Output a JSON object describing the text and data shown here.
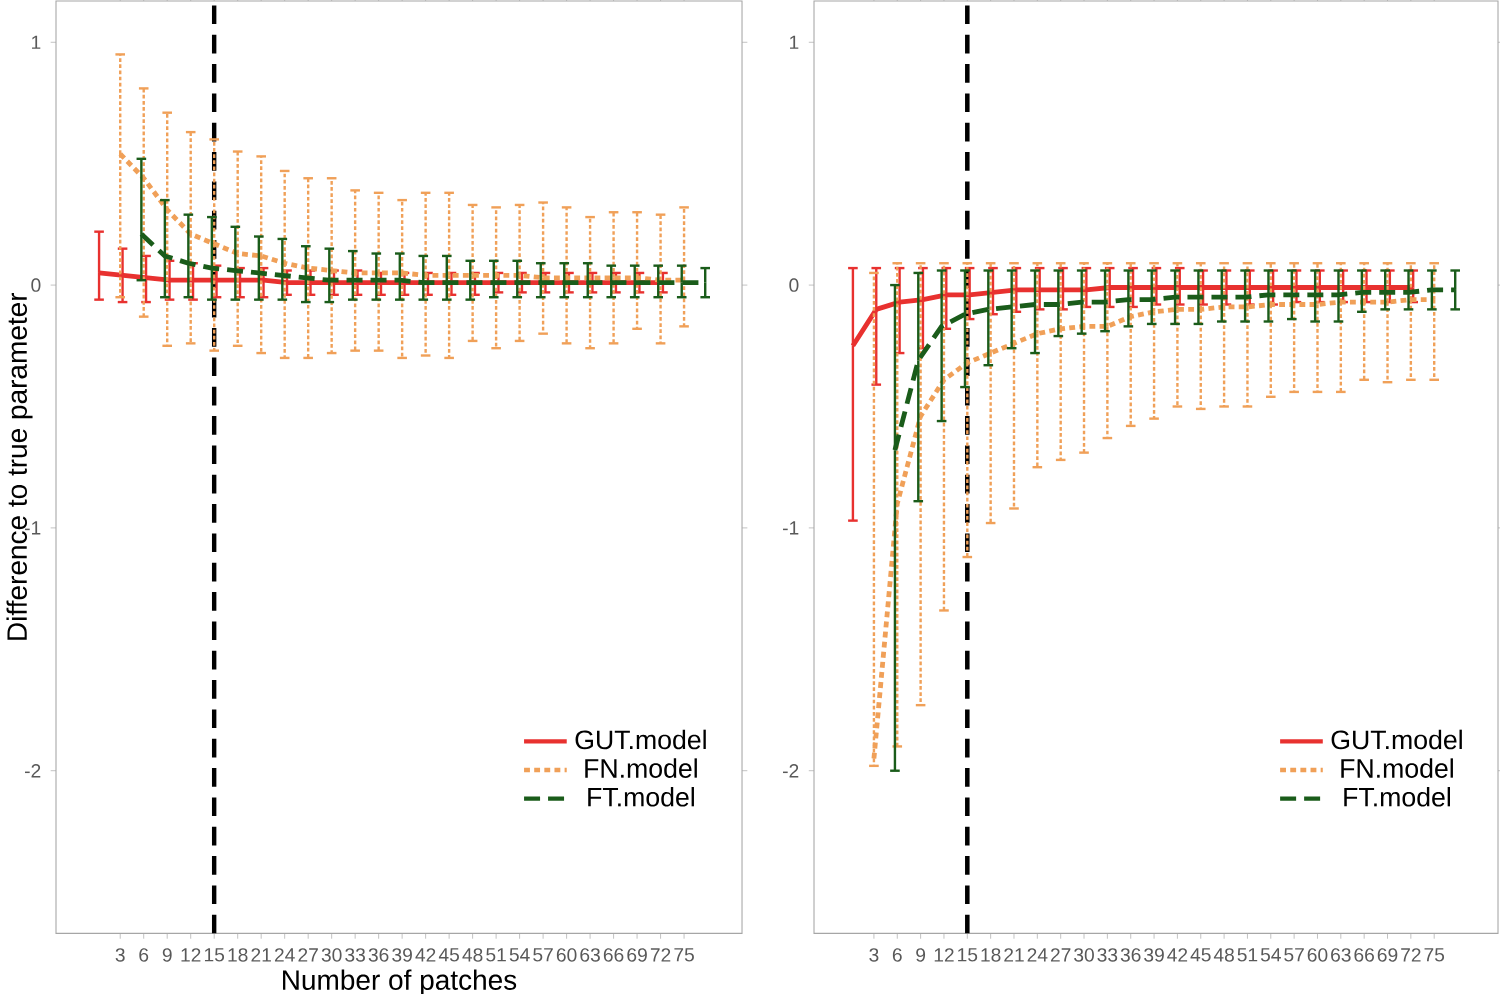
{
  "chart_data": [
    {
      "type": "line",
      "xlabel": "Number of patches",
      "ylabel": "Difference to true parameter",
      "xlim": [
        -5.2,
        82.4
      ],
      "ylim": [
        -2.67,
        1.17
      ],
      "xticks": [
        3,
        6,
        9,
        12,
        15,
        18,
        21,
        24,
        27,
        30,
        33,
        36,
        39,
        42,
        45,
        48,
        51,
        54,
        57,
        60,
        63,
        66,
        69,
        72,
        75
      ],
      "yticks": [
        -2,
        -1,
        0,
        1
      ],
      "legend": "bottom right",
      "ref_lines": [
        {
          "axis": "x",
          "value": 15,
          "color": "#000000",
          "line_style": "dashed"
        }
      ],
      "series": [
        {
          "name": "GUT.model",
          "color": "#e8312f",
          "line_style": "solid",
          "x": [
            0.3,
            3.3,
            6.3,
            9.3,
            12.3,
            15.3,
            18.3,
            21.3,
            24.3,
            27.3,
            30.3,
            33.3,
            36.3,
            39.3,
            42.3,
            45.3,
            48.3,
            51.3,
            54.3,
            57.3,
            60.3,
            63.3,
            66.3,
            69.3,
            72.3
          ],
          "values": [
            0.05,
            0.04,
            0.03,
            0.02,
            0.02,
            0.02,
            0.02,
            0.02,
            0.01,
            0.01,
            0.01,
            0.01,
            0.01,
            0.01,
            0.01,
            0.01,
            0.01,
            0.01,
            0.01,
            0.01,
            0.01,
            0.01,
            0.01,
            0.01,
            0.01
          ],
          "errors": [
            [
              -0.06,
              0.22
            ],
            [
              -0.07,
              0.15
            ],
            [
              -0.07,
              0.12
            ],
            [
              -0.06,
              0.1
            ],
            [
              -0.06,
              0.09
            ],
            [
              -0.05,
              0.08
            ],
            [
              -0.05,
              0.07
            ],
            [
              -0.05,
              0.07
            ],
            [
              -0.04,
              0.06
            ],
            [
              -0.04,
              0.06
            ],
            [
              -0.04,
              0.06
            ],
            [
              -0.04,
              0.06
            ],
            [
              -0.04,
              0.05
            ],
            [
              -0.04,
              0.05
            ],
            [
              -0.04,
              0.05
            ],
            [
              -0.04,
              0.05
            ],
            [
              -0.04,
              0.05
            ],
            [
              -0.03,
              0.05
            ],
            [
              -0.03,
              0.05
            ],
            [
              -0.03,
              0.05
            ],
            [
              -0.03,
              0.05
            ],
            [
              -0.03,
              0.05
            ],
            [
              -0.03,
              0.05
            ],
            [
              -0.03,
              0.05
            ],
            [
              -0.03,
              0.05
            ]
          ]
        },
        {
          "name": "FN.model",
          "color": "#f0a058",
          "line_style": "dotted",
          "x": [
            3,
            6,
            9,
            12,
            15,
            18,
            21,
            24,
            27,
            30,
            33,
            36,
            39,
            42,
            45,
            48,
            51,
            54,
            57,
            60,
            63,
            66,
            69,
            72,
            75
          ],
          "values": [
            0.54,
            0.44,
            0.31,
            0.21,
            0.17,
            0.13,
            0.12,
            0.09,
            0.07,
            0.06,
            0.05,
            0.05,
            0.05,
            0.04,
            0.04,
            0.04,
            0.04,
            0.04,
            0.03,
            0.03,
            0.03,
            0.03,
            0.03,
            0.02,
            0.02
          ],
          "errors": [
            [
              -0.05,
              0.95
            ],
            [
              -0.13,
              0.81
            ],
            [
              -0.25,
              0.71
            ],
            [
              -0.24,
              0.63
            ],
            [
              -0.27,
              0.6
            ],
            [
              -0.25,
              0.55
            ],
            [
              -0.28,
              0.53
            ],
            [
              -0.3,
              0.47
            ],
            [
              -0.3,
              0.44
            ],
            [
              -0.28,
              0.44
            ],
            [
              -0.27,
              0.39
            ],
            [
              -0.27,
              0.38
            ],
            [
              -0.3,
              0.35
            ],
            [
              -0.29,
              0.38
            ],
            [
              -0.3,
              0.38
            ],
            [
              -0.23,
              0.33
            ],
            [
              -0.26,
              0.32
            ],
            [
              -0.23,
              0.33
            ],
            [
              -0.2,
              0.34
            ],
            [
              -0.24,
              0.32
            ],
            [
              -0.26,
              0.28
            ],
            [
              -0.24,
              0.3
            ],
            [
              -0.18,
              0.3
            ],
            [
              -0.24,
              0.29
            ],
            [
              -0.17,
              0.32
            ]
          ]
        },
        {
          "name": "FT.model",
          "color": "#1a5c1a",
          "line_style": "dashed",
          "x": [
            5.7,
            8.7,
            11.7,
            14.7,
            17.7,
            20.7,
            23.7,
            26.7,
            29.7,
            32.7,
            35.7,
            38.7,
            41.7,
            44.7,
            47.7,
            50.7,
            53.7,
            56.7,
            59.7,
            62.7,
            65.7,
            68.7,
            71.7,
            74.7,
            77.7
          ],
          "values": [
            0.21,
            0.12,
            0.09,
            0.07,
            0.06,
            0.05,
            0.04,
            0.03,
            0.02,
            0.02,
            0.02,
            0.02,
            0.01,
            0.01,
            0.01,
            0.01,
            0.01,
            0.01,
            0.01,
            0.01,
            0.01,
            0.01,
            0.01,
            0.01,
            0.01
          ],
          "errors": [
            [
              0.02,
              0.52
            ],
            [
              -0.05,
              0.35
            ],
            [
              -0.05,
              0.29
            ],
            [
              -0.06,
              0.28
            ],
            [
              -0.06,
              0.24
            ],
            [
              -0.06,
              0.2
            ],
            [
              -0.06,
              0.19
            ],
            [
              -0.07,
              0.16
            ],
            [
              -0.07,
              0.15
            ],
            [
              -0.06,
              0.14
            ],
            [
              -0.06,
              0.13
            ],
            [
              -0.06,
              0.13
            ],
            [
              -0.06,
              0.12
            ],
            [
              -0.06,
              0.12
            ],
            [
              -0.06,
              0.1
            ],
            [
              -0.05,
              0.1
            ],
            [
              -0.05,
              0.1
            ],
            [
              -0.05,
              0.09
            ],
            [
              -0.05,
              0.09
            ],
            [
              -0.05,
              0.09
            ],
            [
              -0.05,
              0.08
            ],
            [
              -0.05,
              0.08
            ],
            [
              -0.05,
              0.08
            ],
            [
              -0.05,
              0.08
            ],
            [
              -0.05,
              0.07
            ]
          ]
        }
      ]
    },
    {
      "type": "line",
      "xlim": [
        -4.7,
        83.2
      ],
      "ylim": [
        -2.67,
        1.17
      ],
      "xticks": [
        3,
        6,
        9,
        12,
        15,
        18,
        21,
        24,
        27,
        30,
        33,
        36,
        39,
        42,
        45,
        48,
        51,
        54,
        57,
        60,
        63,
        66,
        69,
        72,
        75
      ],
      "yticks": [
        -2,
        -1,
        0,
        1
      ],
      "legend": "bottom right",
      "ref_lines": [
        {
          "axis": "x",
          "value": 15,
          "color": "#000000",
          "line_style": "dashed"
        }
      ],
      "series": [
        {
          "name": "GUT.model",
          "color": "#e8312f",
          "line_style": "solid",
          "x": [
            0.3,
            3.3,
            6.3,
            9.3,
            12.3,
            15.3,
            18.3,
            21.3,
            24.3,
            27.3,
            30.3,
            33.3,
            36.3,
            39.3,
            42.3,
            45.3,
            48.3,
            51.3,
            54.3,
            57.3,
            60.3,
            63.3,
            66.3,
            69.3,
            72.3
          ],
          "values": [
            -0.25,
            -0.1,
            -0.07,
            -0.06,
            -0.04,
            -0.04,
            -0.03,
            -0.02,
            -0.02,
            -0.02,
            -0.02,
            -0.01,
            -0.01,
            -0.01,
            -0.01,
            -0.01,
            -0.01,
            -0.01,
            -0.01,
            -0.01,
            -0.01,
            -0.01,
            -0.01,
            -0.01,
            -0.01
          ],
          "errors": [
            [
              -0.97,
              0.07
            ],
            [
              -0.41,
              0.07
            ],
            [
              -0.28,
              0.07
            ],
            [
              -0.26,
              0.07
            ],
            [
              -0.18,
              0.07
            ],
            [
              -0.14,
              0.07
            ],
            [
              -0.12,
              0.07
            ],
            [
              -0.11,
              0.07
            ],
            [
              -0.1,
              0.07
            ],
            [
              -0.1,
              0.07
            ],
            [
              -0.09,
              0.07
            ],
            [
              -0.09,
              0.07
            ],
            [
              -0.09,
              0.07
            ],
            [
              -0.08,
              0.07
            ],
            [
              -0.08,
              0.07
            ],
            [
              -0.08,
              0.06
            ],
            [
              -0.08,
              0.06
            ],
            [
              -0.08,
              0.06
            ],
            [
              -0.08,
              0.06
            ],
            [
              -0.07,
              0.06
            ],
            [
              -0.07,
              0.06
            ],
            [
              -0.07,
              0.06
            ],
            [
              -0.07,
              0.06
            ],
            [
              -0.07,
              0.06
            ],
            [
              -0.07,
              0.06
            ]
          ]
        },
        {
          "name": "FN.model",
          "color": "#f0a058",
          "line_style": "dotted",
          "x": [
            3,
            6,
            9,
            12,
            15,
            18,
            21,
            24,
            27,
            30,
            33,
            36,
            39,
            42,
            45,
            48,
            51,
            54,
            57,
            60,
            63,
            66,
            69,
            72,
            75
          ],
          "values": [
            -1.95,
            -0.9,
            -0.54,
            -0.39,
            -0.32,
            -0.28,
            -0.24,
            -0.2,
            -0.18,
            -0.17,
            -0.17,
            -0.13,
            -0.11,
            -0.1,
            -0.1,
            -0.09,
            -0.09,
            -0.08,
            -0.08,
            -0.08,
            -0.07,
            -0.07,
            -0.07,
            -0.06,
            -0.06
          ],
          "errors": [
            [
              -1.98,
              0.05
            ],
            [
              -1.9,
              0.09
            ],
            [
              -1.73,
              0.09
            ],
            [
              -1.34,
              0.09
            ],
            [
              -1.12,
              0.09
            ],
            [
              -0.98,
              0.09
            ],
            [
              -0.92,
              0.09
            ],
            [
              -0.75,
              0.09
            ],
            [
              -0.72,
              0.09
            ],
            [
              -0.69,
              0.09
            ],
            [
              -0.63,
              0.09
            ],
            [
              -0.58,
              0.09
            ],
            [
              -0.55,
              0.09
            ],
            [
              -0.5,
              0.09
            ],
            [
              -0.51,
              0.09
            ],
            [
              -0.5,
              0.09
            ],
            [
              -0.5,
              0.09
            ],
            [
              -0.46,
              0.09
            ],
            [
              -0.44,
              0.09
            ],
            [
              -0.44,
              0.09
            ],
            [
              -0.44,
              0.09
            ],
            [
              -0.39,
              0.09
            ],
            [
              -0.4,
              0.09
            ],
            [
              -0.39,
              0.09
            ],
            [
              -0.39,
              0.09
            ]
          ]
        },
        {
          "name": "FT.model",
          "color": "#1a5c1a",
          "line_style": "dashed",
          "x": [
            5.7,
            8.7,
            11.7,
            14.7,
            17.7,
            20.7,
            23.7,
            26.7,
            29.7,
            32.7,
            35.7,
            38.7,
            41.7,
            44.7,
            47.7,
            50.7,
            53.7,
            56.7,
            59.7,
            62.7,
            65.7,
            68.7,
            71.7,
            74.7,
            77.7
          ],
          "values": [
            -0.68,
            -0.31,
            -0.17,
            -0.12,
            -0.1,
            -0.09,
            -0.08,
            -0.08,
            -0.07,
            -0.07,
            -0.06,
            -0.06,
            -0.05,
            -0.05,
            -0.05,
            -0.05,
            -0.04,
            -0.04,
            -0.04,
            -0.04,
            -0.03,
            -0.03,
            -0.03,
            -0.02,
            -0.02
          ],
          "errors": [
            [
              -2.0,
              0.0
            ],
            [
              -0.89,
              0.05
            ],
            [
              -0.56,
              0.06
            ],
            [
              -0.42,
              0.06
            ],
            [
              -0.33,
              0.06
            ],
            [
              -0.26,
              0.06
            ],
            [
              -0.28,
              0.06
            ],
            [
              -0.21,
              0.06
            ],
            [
              -0.2,
              0.06
            ],
            [
              -0.19,
              0.06
            ],
            [
              -0.17,
              0.06
            ],
            [
              -0.16,
              0.06
            ],
            [
              -0.16,
              0.06
            ],
            [
              -0.16,
              0.06
            ],
            [
              -0.15,
              0.06
            ],
            [
              -0.15,
              0.06
            ],
            [
              -0.15,
              0.06
            ],
            [
              -0.14,
              0.06
            ],
            [
              -0.15,
              0.06
            ],
            [
              -0.15,
              0.06
            ],
            [
              -0.11,
              0.06
            ],
            [
              -0.1,
              0.06
            ],
            [
              -0.1,
              0.06
            ],
            [
              -0.1,
              0.06
            ],
            [
              -0.1,
              0.06
            ]
          ]
        }
      ]
    }
  ]
}
